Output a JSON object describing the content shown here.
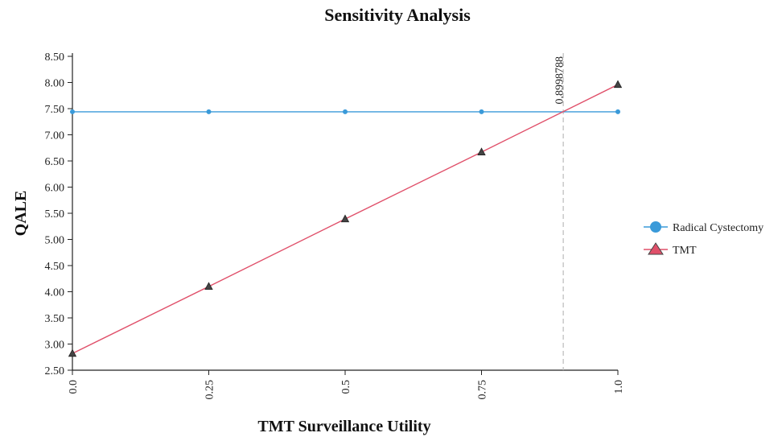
{
  "chart_data": {
    "type": "line",
    "title": "Sensitivity Analysis",
    "xlabel": "TMT Surveillance Utility",
    "ylabel": "QALE",
    "x": [
      0.0,
      0.25,
      0.5,
      0.75,
      1.0
    ],
    "x_tick_labels": [
      "0.0",
      "0.25",
      "0.5",
      "0.75",
      "1.0"
    ],
    "xlim": [
      0.0,
      1.0
    ],
    "ylim": [
      2.5,
      8.5
    ],
    "y_ticks": [
      2.5,
      3.0,
      3.5,
      4.0,
      4.5,
      5.0,
      5.5,
      6.0,
      6.5,
      7.0,
      7.5,
      8.0,
      8.5
    ],
    "y_tick_labels": [
      "2.50",
      "3.00",
      "3.50",
      "4.00",
      "4.50",
      "5.00",
      "5.50",
      "6.00",
      "6.50",
      "7.00",
      "7.50",
      "8.00",
      "8.50"
    ],
    "series": [
      {
        "name": "Radical Cystectomy",
        "values": [
          7.44,
          7.44,
          7.44,
          7.44,
          7.44
        ],
        "color": "#3a9ad9",
        "marker": "circle"
      },
      {
        "name": "TMT",
        "values": [
          2.82,
          4.1,
          5.39,
          6.67,
          7.96
        ],
        "color": "#e0506a",
        "marker": "triangle"
      }
    ],
    "threshold": {
      "x": 0.8998788,
      "label": "0.8998788"
    },
    "grid": false,
    "legend": "right"
  }
}
